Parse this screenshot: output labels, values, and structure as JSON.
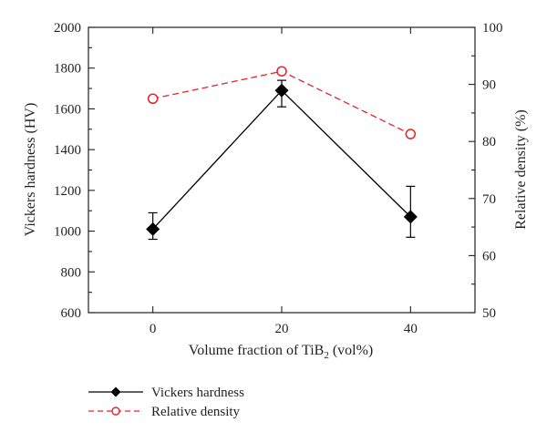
{
  "chart_data": {
    "type": "line",
    "title": "",
    "x": [
      0,
      20,
      40
    ],
    "xlabel": "Volume fraction of TiB",
    "xlabel_sub": "2",
    "xlabel_suffix": " (vol%)",
    "xlim": [
      -10,
      50
    ],
    "xticks": [
      0,
      20,
      40
    ],
    "ylabel": "Vickers hardness (HV)",
    "ylim": [
      600,
      2000
    ],
    "yticks": [
      600,
      800,
      1000,
      1200,
      1400,
      1600,
      1800,
      2000
    ],
    "y2label": "Relative density (%)",
    "y2lim": [
      50,
      100
    ],
    "y2ticks": [
      50,
      60,
      70,
      80,
      90,
      100
    ],
    "grid": false,
    "legend_position": "bottom-left, below plot",
    "series": [
      {
        "name": "Vickers hardness",
        "axis": "left",
        "values": [
          1010,
          1690,
          1070
        ],
        "error_upper": [
          1090,
          1740,
          1220
        ],
        "error_lower": [
          960,
          1610,
          970
        ],
        "color": "#000000",
        "line_style": "solid",
        "marker": "filled-diamond"
      },
      {
        "name": "Relative density",
        "axis": "right",
        "values": [
          87.5,
          92.3,
          81.3
        ],
        "color": "#e8202a",
        "line_style": "dashed",
        "marker": "open-circle"
      }
    ]
  }
}
